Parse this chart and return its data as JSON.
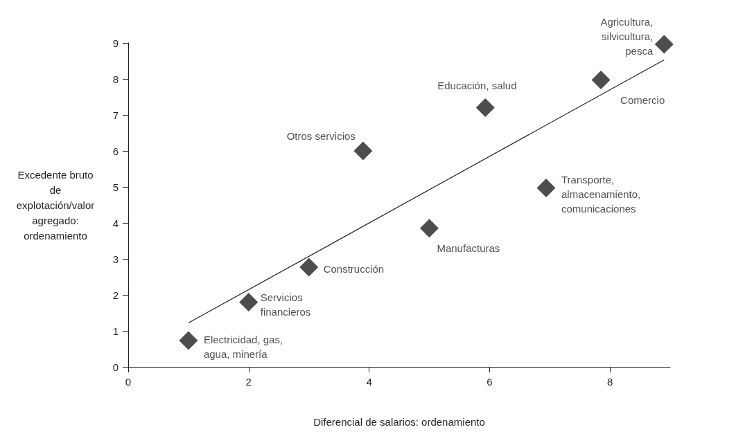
{
  "chart_data": {
    "type": "scatter",
    "xlabel": "Diferencial de salarios: ordenamiento",
    "ylabel": "Excedente bruto\nde\nexplotación/valor\nagregado:\nordenamiento",
    "xlim": [
      0,
      9
    ],
    "xticks": [
      0,
      2,
      4,
      6,
      8
    ],
    "ylim": [
      0,
      9
    ],
    "yticks": [
      0,
      1,
      2,
      3,
      4,
      5,
      6,
      7,
      8,
      9
    ],
    "grid": false,
    "marker": "diamond",
    "series": [
      {
        "color": "#231f20",
        "x": [
          1.0,
          2.0,
          3.0,
          3.9,
          5.0,
          5.93,
          6.94,
          7.85,
          8.9
        ],
        "values": [
          0.73,
          1.8,
          2.77,
          6.0,
          3.85,
          7.2,
          4.97,
          7.97,
          8.96
        ]
      },
      {
        "type": "line",
        "color": "#231f20",
        "marker": "none",
        "line_style": "solid",
        "x": [
          1.0,
          8.9
        ],
        "values": [
          1.22,
          8.53
        ]
      }
    ],
    "annotations": [
      {
        "text": "Electricidad, gas,\nagua, minería",
        "x": 1.0,
        "y": 0.73
      },
      {
        "text": "Servicios\nfinancieros",
        "x": 2.0,
        "y": 1.8
      },
      {
        "text": "Construcción",
        "x": 3.0,
        "y": 2.77
      },
      {
        "text": "Otros servicios",
        "x": 3.9,
        "y": 6.0
      },
      {
        "text": "Manufacturas",
        "x": 5.0,
        "y": 3.85
      },
      {
        "text": "Educación, salud",
        "x": 5.93,
        "y": 7.2
      },
      {
        "text": "Transporte,\nalmacenamiento,\ncomunicaciones",
        "x": 6.94,
        "y": 4.97
      },
      {
        "text": "Comercio",
        "x": 7.85,
        "y": 7.97
      },
      {
        "text": "Agricultura,\nsilvicultura,\npesca",
        "x": 8.9,
        "y": 8.96
      }
    ]
  }
}
